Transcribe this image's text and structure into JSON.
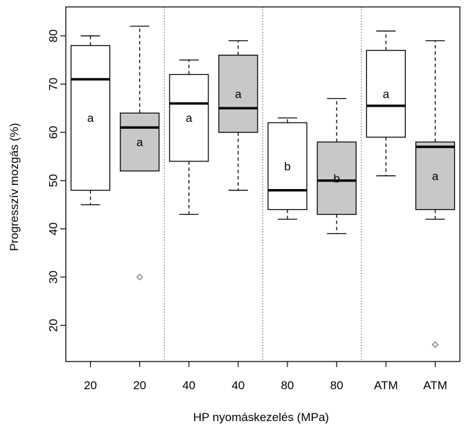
{
  "chart_data": {
    "type": "box",
    "title": "",
    "xlabel": "HP nyomáskezelés (MPa)",
    "ylabel": "Progresszív mozgás (%)",
    "ylim": [
      12.5,
      86
    ],
    "yticks": [
      20,
      30,
      40,
      50,
      60,
      70,
      80
    ],
    "grid": false,
    "categories": [
      "20",
      "20",
      "40",
      "40",
      "80",
      "80",
      "ATM",
      "ATM"
    ],
    "boxes": [
      {
        "category": "20",
        "fill": "white",
        "whisker_low": 45,
        "q1": 48,
        "median": 71,
        "q3": 78,
        "whisker_high": 80,
        "outliers": [],
        "letter": "a"
      },
      {
        "category": "20",
        "fill": "gray",
        "whisker_low": 52,
        "q1": 52,
        "median": 61,
        "q3": 64,
        "whisker_high": 82,
        "outliers": [
          30
        ],
        "letter": "a"
      },
      {
        "category": "40",
        "fill": "white",
        "whisker_low": 43,
        "q1": 54,
        "median": 66,
        "q3": 72,
        "whisker_high": 75,
        "outliers": [],
        "letter": "a"
      },
      {
        "category": "40",
        "fill": "gray",
        "whisker_low": 48,
        "q1": 60,
        "median": 65,
        "q3": 76,
        "whisker_high": 79,
        "outliers": [],
        "letter": "a"
      },
      {
        "category": "80",
        "fill": "white",
        "whisker_low": 42,
        "q1": 44,
        "median": 48,
        "q3": 62,
        "whisker_high": 63,
        "outliers": [],
        "letter": "b"
      },
      {
        "category": "80",
        "fill": "gray",
        "whisker_low": 39,
        "q1": 43,
        "median": 50,
        "q3": 58,
        "whisker_high": 67,
        "outliers": [],
        "letter": "b"
      },
      {
        "category": "ATM",
        "fill": "white",
        "whisker_low": 51,
        "q1": 59,
        "median": 65.5,
        "q3": 77,
        "whisker_high": 81,
        "outliers": [],
        "letter": "a"
      },
      {
        "category": "ATM",
        "fill": "gray",
        "whisker_low": 42,
        "q1": 44,
        "median": 57,
        "q3": 58,
        "whisker_high": 79,
        "outliers": [
          16
        ],
        "letter": "a"
      }
    ],
    "colors": {
      "white": "#ffffff",
      "gray": "#c8c8c8",
      "line": "#000000",
      "separator": "#555555"
    }
  }
}
